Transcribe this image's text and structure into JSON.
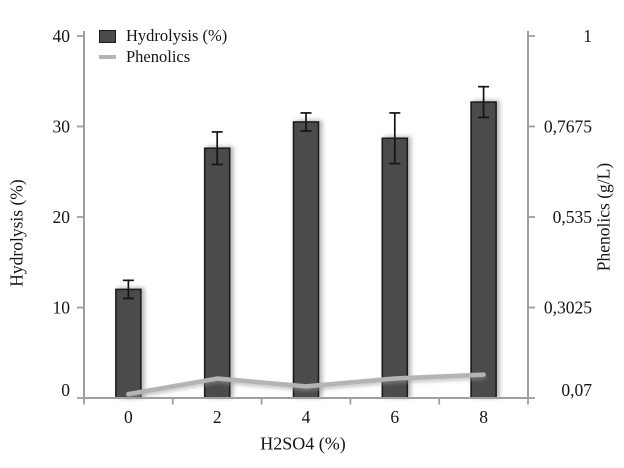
{
  "colors": {
    "bar_fill": "#4b4b49",
    "bar_border": "#1c1c1c",
    "line": "#b4b4b4",
    "axis": "#9f9f9f",
    "error_bar": "#141414",
    "text": "#151515",
    "background": "#ffffff"
  },
  "chart_data": {
    "type": "bar",
    "title": "",
    "categories": [
      "0",
      "2",
      "4",
      "6",
      "8"
    ],
    "series": [
      {
        "name": "Hydrolysis (%)",
        "type": "bar",
        "axis": "left",
        "values": [
          12.0,
          27.6,
          30.5,
          28.7,
          32.7
        ],
        "errors": [
          1.0,
          1.8,
          1.0,
          2.8,
          1.7
        ],
        "color": "#4b4b49"
      },
      {
        "name": "Phenolics",
        "type": "line",
        "axis": "right",
        "values": [
          0.08,
          0.12,
          0.1,
          0.12,
          0.13
        ],
        "color": "#b4b4b4"
      }
    ],
    "xlabel": "H2SO4 (%)",
    "left_axis": {
      "label": "Hydrolysis (%)",
      "min": 0,
      "max": 40,
      "tick_values": [
        0,
        10,
        20,
        30,
        40
      ],
      "ticks": [
        "0",
        "10",
        "20",
        "30",
        "40"
      ]
    },
    "right_axis": {
      "label": "Phenolics (g/L)",
      "min": 0.07,
      "max": 1,
      "tick_values": [
        0.07,
        0.3025,
        0.535,
        0.7675,
        1
      ],
      "ticks": [
        "0,07",
        "0,3025",
        "0,535",
        "0,7675",
        "1"
      ]
    },
    "legend": {
      "position": "top-left-inside",
      "entries": [
        {
          "label": "Hydrolysis (%)",
          "swatch": "square"
        },
        {
          "label": "Phenolics",
          "swatch": "line"
        }
      ]
    },
    "grid": false
  }
}
